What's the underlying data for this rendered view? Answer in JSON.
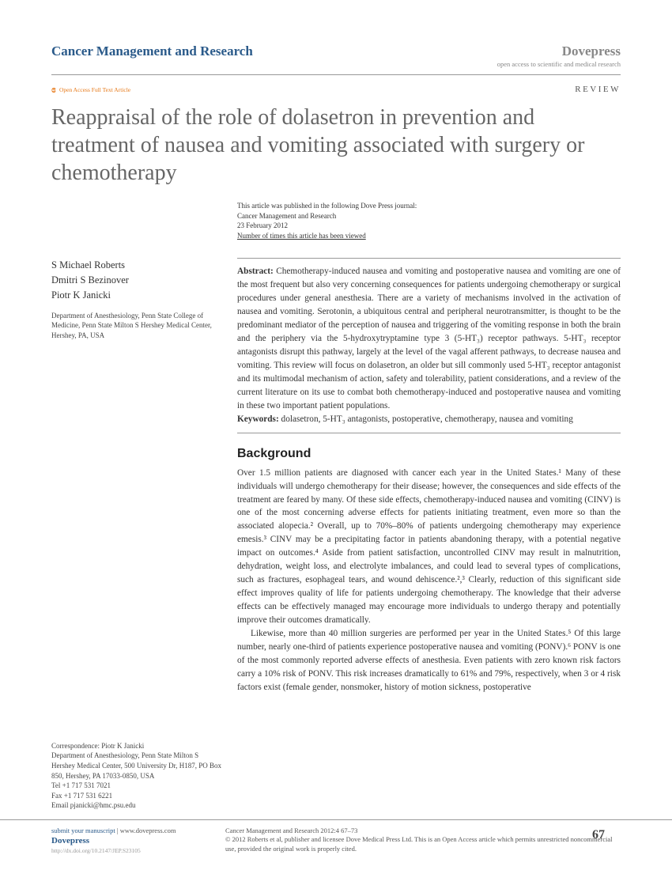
{
  "header": {
    "journal": "Cancer Management and Research",
    "publisher": "Dovepress",
    "tagline": "open access to scientific and medical research",
    "oa_label": "Open Access Full Text Article",
    "article_type": "REVIEW"
  },
  "title": "Reappraisal of the role of dolasetron in prevention and treatment of nausea and vomiting associated with surgery or chemotherapy",
  "pub_meta": {
    "line1": "This article was published in the following Dove Press journal:",
    "line2": "Cancer Management and Research",
    "line3": "23 February 2012",
    "line4": "Number of times this article has been viewed"
  },
  "authors": [
    "S Michael Roberts",
    "Dmitri S Bezinover",
    "Piotr K Janicki"
  ],
  "affiliation": "Department of Anesthesiology, Penn State College of Medicine, Penn State Milton S Hershey Medical Center, Hershey, PA, USA",
  "abstract_label": "Abstract:",
  "abstract": " Chemotherapy-induced nausea and vomiting and postoperative nausea and vomiting are one of the most frequent but also very concerning consequences for patients undergoing chemotherapy or surgical procedures under general anesthesia. There are a variety of mechanisms involved in the activation of nausea and vomiting. Serotonin, a ubiquitous central and peripheral neurotransmitter, is thought to be the predominant mediator of the perception of nausea and triggering of the vomiting response in both the brain and the periphery via the 5-hydroxytryptamine type 3 (5-HT₃) receptor pathways. 5-HT₃ receptor antagonists disrupt this pathway, largely at the level of the vagal afferent pathways, to decrease nausea and vomiting. This review will focus on dolasetron, an older but sill commonly used 5-HT₃ receptor antagonist and its multimodal mechanism of action, safety and tolerability, patient considerations, and a review of the current literature on its use to combat both chemotherapy-induced and postoperative nausea and vomiting in these two important patient populations.",
  "keywords_label": "Keywords:",
  "keywords": " dolasetron, 5-HT₃ antagonists, postoperative, chemotherapy, nausea and vomiting",
  "section_heading": "Background",
  "body_p1": "Over 1.5 million patients are diagnosed with cancer each year in the United States.¹ Many of these individuals will undergo chemotherapy for their disease; however, the consequences and side effects of the treatment are feared by many. Of these side effects, chemotherapy-induced nausea and vomiting (CINV) is one of the most concerning adverse effects for patients initiating treatment, even more so than the associated alopecia.² Overall, up to 70%–80% of patients undergoing chemotherapy may experience emesis.³ CINV may be a precipitating factor in patients abandoning therapy, with a potential negative impact on outcomes.⁴ Aside from patient satisfaction, uncontrolled CINV may result in malnutrition, dehydration, weight loss, and electrolyte imbalances, and could lead to several types of complications, such as fractures, esophageal tears, and wound dehiscence.²,³ Clearly, reduction of this significant side effect improves quality of life for patients undergoing chemotherapy. The knowledge that their adverse effects can be effectively managed may encourage more individuals to undergo therapy and potentially improve their outcomes dramatically.",
  "body_p2": "Likewise, more than 40 million surgeries are performed per year in the United States.⁵ Of this large number, nearly one-third of patients experience postoperative nausea and vomiting (PONV).⁶ PONV is one of the most commonly reported adverse effects of anesthesia. Even patients with zero known risk factors carry a 10% risk of PONV. This risk increases dramatically to 61% and 79%, respectively, when 3 or 4 risk factors exist (female gender, nonsmoker, history of motion sickness, postoperative",
  "correspondence": {
    "label": "Correspondence: Piotr K Janicki",
    "lines": "Department of Anesthesiology, Penn State Milton S Hershey Medical Center, 500 University Dr, H187, PO Box 850, Hershey, PA 17033-0850, USA",
    "tel": "Tel +1 717 531 7021",
    "fax": "Fax +1 717 531 6221",
    "email": "Email pjanicki@hmc.psu.edu"
  },
  "footer": {
    "submit": "submit your manuscript",
    "submit_url": " | www.dovepress.com",
    "dove": "Dovepress",
    "doi": "http://dx.doi.org/10.2147/JEP.S23105",
    "citation": "Cancer Management and Research 2012:4 67–73",
    "copyright": "© 2012 Roberts et al, publisher and licensee Dove Medical Press Ltd. This is an Open Access article which permits unrestricted noncommercial use, provided the original work is properly cited.",
    "page": "67"
  }
}
